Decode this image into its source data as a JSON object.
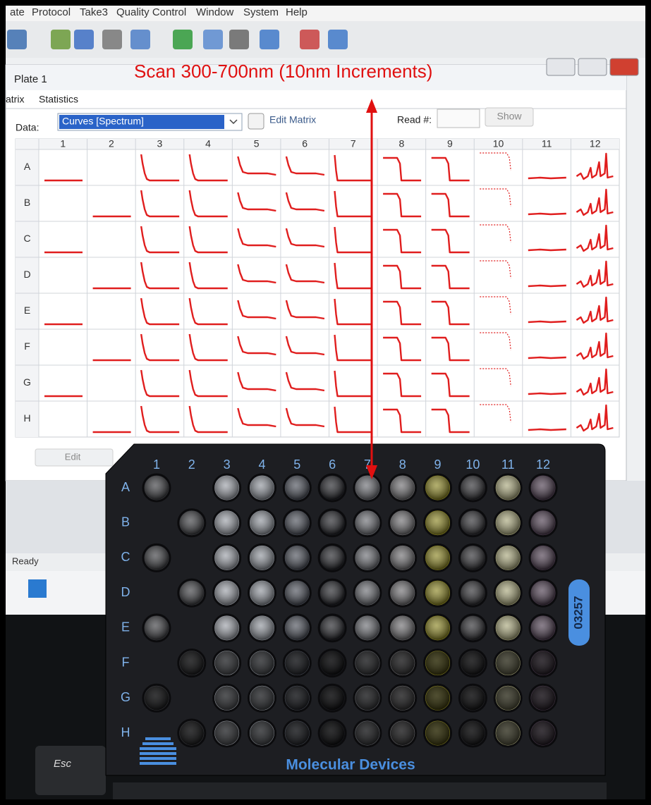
{
  "menu": [
    "ate",
    "Protocol",
    "Take3",
    "Quality Control",
    "Window",
    "System",
    "Help"
  ],
  "window": {
    "title": "Plate 1",
    "tabs": [
      "atrix",
      "Statistics"
    ],
    "data_label": "Data:",
    "data_select": "Curves [Spectrum]",
    "edit_matrix": "Edit Matrix",
    "read_label": "Read #:",
    "show_button": "Show",
    "columns": [
      "1",
      "2",
      "3",
      "4",
      "5",
      "6",
      "7",
      "8",
      "9",
      "10",
      "11",
      "12"
    ],
    "rows": [
      "A",
      "B",
      "C",
      "D",
      "E",
      "F",
      "G",
      "H"
    ],
    "edit_button": "Edit",
    "status": "Ready"
  },
  "annotation": "Scan 300-700nm (10nm Increments)",
  "plate": {
    "columns": [
      "1",
      "2",
      "3",
      "4",
      "5",
      "6",
      "7",
      "8",
      "9",
      "10",
      "11",
      "12"
    ],
    "rows": [
      "A",
      "B",
      "C",
      "D",
      "E",
      "F",
      "G",
      "H"
    ],
    "brand": "Molecular Devices",
    "serial": "03257"
  },
  "keyboard": {
    "esc": "Esc"
  }
}
